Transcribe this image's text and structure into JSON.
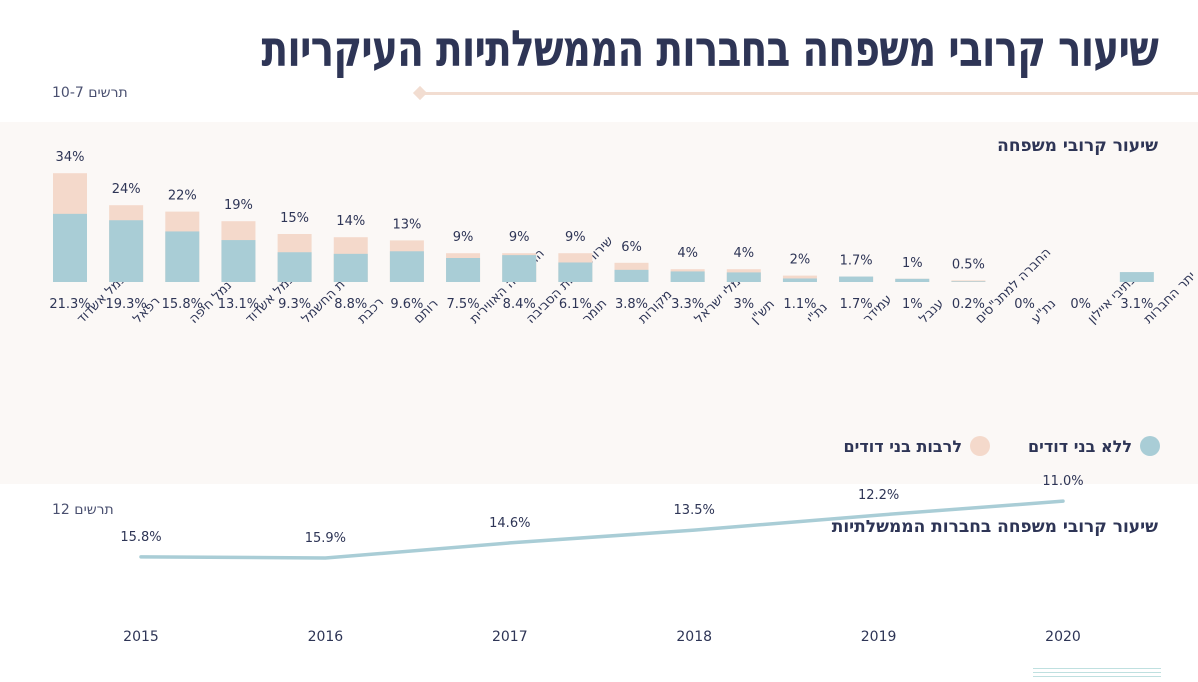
{
  "header": {
    "title": "שיעור קרובי משפחה בחברות הממשלתיות העיקריות",
    "note_top": "תרשים 10-7",
    "note_bottom": "תרשים 12"
  },
  "colors": {
    "navy": "#2e3556",
    "with_relatives": "#f4d9cb",
    "without_relatives": "#a9cdd6",
    "line": "#a9cdd6",
    "panel_bg": "#fbf8f6"
  },
  "legend": {
    "without": "ללא בני דודים",
    "with": "לרבות בני דודים"
  },
  "chart_data": [
    {
      "type": "bar",
      "title": "שיעור קרובי משפחה",
      "categories": [
        "נמל אשדוד",
        "רפאל",
        "נמל חיפה",
        "נמל אשדוד",
        "חברת החשמל",
        "רכבת",
        "רותם",
        "התעשייה האווירית",
        "שירותי איכות הסביבה",
        "תומר",
        "מקורות",
        "נמלי ישראל",
        "תש\"ן",
        "נת\"י",
        "עמידר",
        "ענבל",
        "החברה למתנ\"סים",
        "נת\"ע",
        "נתיבי איילון",
        "יתר החברות"
      ],
      "series": [
        {
          "name": "לרבות בני דודים",
          "values": [
            34,
            24,
            22,
            19,
            15,
            14,
            13,
            9,
            9,
            9,
            6,
            4,
            4,
            2,
            1.7,
            1,
            0.5,
            null,
            null,
            null
          ],
          "labels": [
            "34%",
            "24%",
            "22%",
            "19%",
            "15%",
            "14%",
            "13%",
            "9%",
            "9%",
            "9%",
            "6%",
            "4%",
            "4%",
            "2%",
            "1.7%",
            "1%",
            "0.5%",
            "",
            "",
            ""
          ]
        },
        {
          "name": "ללא בני דודים",
          "values": [
            21.3,
            19.3,
            15.8,
            13.1,
            9.3,
            8.8,
            9.6,
            7.5,
            8.4,
            6.1,
            3.8,
            3.3,
            3,
            1.1,
            1.7,
            1,
            0.2,
            0,
            0,
            3.1
          ],
          "labels": [
            "21.3%",
            "19.3%",
            "15.8%",
            "13.1%",
            "9.3%",
            "8.8%",
            "9.6%",
            "7.5%",
            "8.4%",
            "6.1%",
            "3.8%",
            "3.3%",
            "3%",
            "1.1%",
            "1.7%",
            "1%",
            "0.2%",
            "0%",
            "0%",
            "3.1%"
          ]
        }
      ],
      "legend_position": "bottom-right",
      "grid": false
    },
    {
      "type": "line",
      "title": "שיעור קרובי משפחה בחברות הממשלתיות",
      "x": [
        "2015",
        "2016",
        "2017",
        "2018",
        "2019",
        "2020"
      ],
      "y": [
        15.8,
        15.9,
        14.6,
        13.5,
        12.2,
        11.0
      ],
      "labels": [
        "15.8%",
        "15.9%",
        "14.6%",
        "13.5%",
        "12.2%",
        "11.0%"
      ],
      "grid": false
    }
  ]
}
